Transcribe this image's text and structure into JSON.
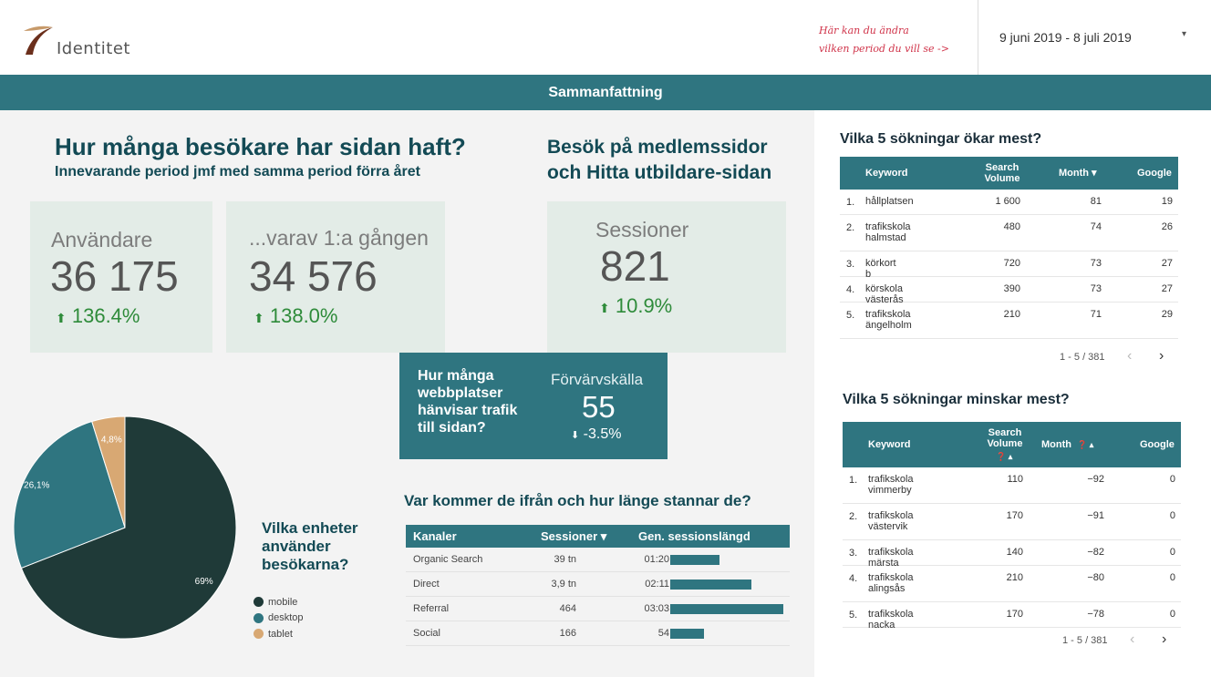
{
  "header": {
    "logo_text": "Identitet",
    "hint_line1": "Här kan du ändra",
    "hint_line2": "vilken period du vill se ->",
    "date_range": "9 juni 2019 - 8 juli 2019",
    "caret": "▾"
  },
  "banner": {
    "title": "Sammanfattning"
  },
  "section1": {
    "title": "Hur många besökare har sidan haft?",
    "subtitle": "Innevarande period jmf med samma period förra året"
  },
  "section2": {
    "title_line1": "Besök på medlemssidor",
    "title_line2": "och Hitta utbildare-sidan"
  },
  "kpis": {
    "users": {
      "label": "Användare",
      "value": "36 175",
      "change": "136.4%",
      "arrow": "⬆"
    },
    "new_users": {
      "label": "...varav 1:a gången",
      "value": "34 576",
      "change": "138.0%",
      "arrow": "⬆"
    },
    "sessions": {
      "label": "Sessioner",
      "value": "821",
      "change": "10.9%",
      "arrow": "⬆"
    }
  },
  "acquisition": {
    "question": "Hur många webbplatser hänvisar trafik till sidan?",
    "label": "Förvärvskälla",
    "value": "55",
    "change": "-3.5%",
    "arrow": "⬇"
  },
  "devices": {
    "question": "Vilka enheter använder besökarna?",
    "slices": [
      {
        "name": "mobile",
        "percent": 69,
        "label": "69%",
        "color": "#1f3a38"
      },
      {
        "name": "desktop",
        "percent": 26.1,
        "label": "26,1%",
        "color": "#2f7580"
      },
      {
        "name": "tablet",
        "percent": 4.8,
        "label": "4,8%",
        "color": "#d8a873"
      }
    ]
  },
  "channels": {
    "title": "Var kommer de ifrån och hur länge stannar de?",
    "col_channel": "Kanaler",
    "col_sessions": "Sessioner ▾",
    "col_length": "Gen. sessionslängd",
    "rows": [
      {
        "name": "Organic Search",
        "sessions": "39 tn",
        "length": "01:20",
        "seconds": 80
      },
      {
        "name": "Direct",
        "sessions": "3,9 tn",
        "length": "02:11",
        "seconds": 131
      },
      {
        "name": "Referral",
        "sessions": "464",
        "length": "03:03",
        "seconds": 183
      },
      {
        "name": "Social",
        "sessions": "166",
        "length": "54",
        "seconds": 54
      }
    ]
  },
  "top_increase": {
    "title": "Vilka 5 sökningar ökar mest?",
    "col_keyword": "Keyword",
    "col_volume": "Search Volume",
    "col_month": "Month ▾",
    "col_google": "Google",
    "rows": [
      {
        "n": "1.",
        "kw1": "hållplatsen",
        "kw2": "",
        "vol": "1 600",
        "month": "81",
        "google": "19"
      },
      {
        "n": "2.",
        "kw1": "trafikskola",
        "kw2": "halmstad",
        "vol": "480",
        "month": "74",
        "google": "26"
      },
      {
        "n": "3.",
        "kw1": "körkort b",
        "kw2": "",
        "vol": "720",
        "month": "73",
        "google": "27"
      },
      {
        "n": "4.",
        "kw1": "körskola västerås",
        "kw2": "",
        "vol": "390",
        "month": "73",
        "google": "27"
      },
      {
        "n": "5.",
        "kw1": "trafikskola",
        "kw2": "ängelholm",
        "vol": "210",
        "month": "71",
        "google": "29"
      }
    ],
    "pagination": "1 - 5 / 381"
  },
  "top_decrease": {
    "title": "Vilka 5 sökningar minskar mest?",
    "col_keyword": "Keyword",
    "col_volume": "Search Volume",
    "col_month": "Month",
    "col_google": "Google",
    "rows": [
      {
        "n": "1.",
        "kw1": "trafikskola",
        "kw2": "vimmerby",
        "vol": "110",
        "month": "−92",
        "google": "0"
      },
      {
        "n": "2.",
        "kw1": "trafikskola",
        "kw2": "västervik",
        "vol": "170",
        "month": "−91",
        "google": "0"
      },
      {
        "n": "3.",
        "kw1": "trafikskola märsta",
        "kw2": "",
        "vol": "140",
        "month": "−82",
        "google": "0"
      },
      {
        "n": "4.",
        "kw1": "trafikskola",
        "kw2": "alingsås",
        "vol": "210",
        "month": "−80",
        "google": "0"
      },
      {
        "n": "5.",
        "kw1": "trafikskola nacka",
        "kw2": "",
        "vol": "170",
        "month": "−78",
        "google": "0"
      }
    ],
    "pagination": "1 - 5 / 381"
  }
}
